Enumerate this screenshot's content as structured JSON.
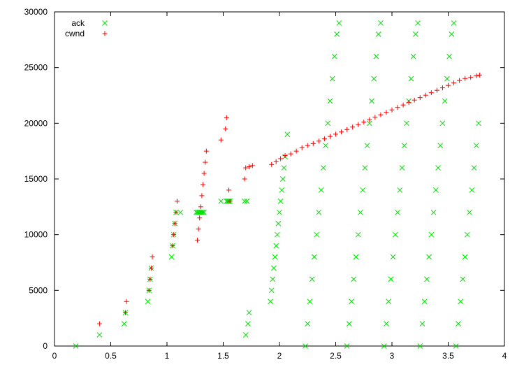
{
  "chart_data": {
    "type": "scatter",
    "title": "",
    "xlabel": "",
    "ylabel": "",
    "xlim": [
      0,
      4
    ],
    "ylim": [
      0,
      30000
    ],
    "x_ticks": [
      "0",
      "0.5",
      "1",
      "1.5",
      "2",
      "2.5",
      "3",
      "3.5",
      "4"
    ],
    "y_ticks": [
      "0",
      "5000",
      "10000",
      "15000",
      "20000",
      "25000",
      "30000"
    ],
    "legend_position": "top-left",
    "grid": false,
    "series": [
      {
        "name": "ack",
        "color": "#00e000",
        "marker": "x",
        "points": [
          [
            0.19,
            0
          ],
          [
            0.4,
            1000
          ],
          [
            0.62,
            2000
          ],
          [
            0.63,
            3000
          ],
          [
            0.83,
            4000
          ],
          [
            0.84,
            5000
          ],
          [
            0.85,
            6000
          ],
          [
            0.86,
            7000
          ],
          [
            1.04,
            8000
          ],
          [
            1.05,
            9000
          ],
          [
            1.06,
            10000
          ],
          [
            1.07,
            11000
          ],
          [
            1.08,
            12000
          ],
          [
            1.12,
            12000
          ],
          [
            1.26,
            12000
          ],
          [
            1.27,
            12000
          ],
          [
            1.28,
            12000
          ],
          [
            1.29,
            12000
          ],
          [
            1.3,
            12000
          ],
          [
            1.31,
            12000
          ],
          [
            1.32,
            12000
          ],
          [
            1.33,
            12000
          ],
          [
            1.48,
            13000
          ],
          [
            1.53,
            13000
          ],
          [
            1.54,
            13000
          ],
          [
            1.55,
            13000
          ],
          [
            1.56,
            13000
          ],
          [
            1.69,
            13000
          ],
          [
            1.71,
            13000
          ],
          [
            1.7,
            1000
          ],
          [
            1.72,
            2000
          ],
          [
            1.73,
            3000
          ],
          [
            1.92,
            4000
          ],
          [
            1.93,
            5000
          ],
          [
            1.94,
            6000
          ],
          [
            1.95,
            7000
          ],
          [
            1.96,
            8000
          ],
          [
            1.97,
            9000
          ],
          [
            1.98,
            10000
          ],
          [
            1.99,
            11000
          ],
          [
            2.0,
            12000
          ],
          [
            2.01,
            13000
          ],
          [
            2.02,
            14000
          ],
          [
            2.03,
            15000
          ],
          [
            2.04,
            16000
          ],
          [
            2.05,
            17000
          ],
          [
            2.07,
            19000
          ],
          [
            2.23,
            0
          ],
          [
            2.25,
            2000
          ],
          [
            2.27,
            4000
          ],
          [
            2.29,
            6000
          ],
          [
            2.31,
            8000
          ],
          [
            2.33,
            10000
          ],
          [
            2.35,
            12000
          ],
          [
            2.37,
            14000
          ],
          [
            2.39,
            16000
          ],
          [
            2.41,
            18000
          ],
          [
            2.43,
            20000
          ],
          [
            2.45,
            22000
          ],
          [
            2.47,
            24000
          ],
          [
            2.49,
            26000
          ],
          [
            2.51,
            28000
          ],
          [
            2.53,
            29000
          ],
          [
            2.6,
            0
          ],
          [
            2.62,
            2000
          ],
          [
            2.64,
            4000
          ],
          [
            2.66,
            6000
          ],
          [
            2.68,
            8000
          ],
          [
            2.7,
            10000
          ],
          [
            2.72,
            12000
          ],
          [
            2.74,
            14000
          ],
          [
            2.76,
            16000
          ],
          [
            2.78,
            18000
          ],
          [
            2.8,
            20000
          ],
          [
            2.82,
            22000
          ],
          [
            2.84,
            24000
          ],
          [
            2.86,
            26000
          ],
          [
            2.88,
            28000
          ],
          [
            2.9,
            29000
          ],
          [
            2.93,
            0
          ],
          [
            2.95,
            2000
          ],
          [
            2.97,
            4000
          ],
          [
            2.99,
            6000
          ],
          [
            3.01,
            8000
          ],
          [
            3.03,
            10000
          ],
          [
            3.05,
            12000
          ],
          [
            3.07,
            14000
          ],
          [
            3.09,
            16000
          ],
          [
            3.11,
            18000
          ],
          [
            3.13,
            20000
          ],
          [
            3.15,
            22000
          ],
          [
            3.17,
            24000
          ],
          [
            3.19,
            26000
          ],
          [
            3.21,
            28000
          ],
          [
            3.23,
            29000
          ],
          [
            3.25,
            0
          ],
          [
            3.27,
            2000
          ],
          [
            3.29,
            4000
          ],
          [
            3.31,
            6000
          ],
          [
            3.33,
            8000
          ],
          [
            3.35,
            10000
          ],
          [
            3.37,
            12000
          ],
          [
            3.39,
            14000
          ],
          [
            3.41,
            16000
          ],
          [
            3.43,
            18000
          ],
          [
            3.45,
            20000
          ],
          [
            3.47,
            22000
          ],
          [
            3.49,
            24000
          ],
          [
            3.51,
            26000
          ],
          [
            3.53,
            28000
          ],
          [
            3.55,
            29000
          ],
          [
            3.57,
            0
          ],
          [
            3.59,
            2000
          ],
          [
            3.61,
            4000
          ],
          [
            3.63,
            6000
          ],
          [
            3.65,
            8000
          ],
          [
            3.67,
            10000
          ],
          [
            3.69,
            12000
          ],
          [
            3.71,
            14000
          ],
          [
            3.73,
            16000
          ],
          [
            3.75,
            18000
          ],
          [
            3.77,
            20000
          ]
        ]
      },
      {
        "name": "cwnd",
        "color": "#ff0000",
        "marker": "+",
        "points": [
          [
            0.4,
            2000
          ],
          [
            0.63,
            3000
          ],
          [
            0.64,
            4000
          ],
          [
            0.84,
            5000
          ],
          [
            0.85,
            6000
          ],
          [
            0.86,
            7000
          ],
          [
            0.87,
            8000
          ],
          [
            1.05,
            9000
          ],
          [
            1.06,
            10000
          ],
          [
            1.07,
            11000
          ],
          [
            1.08,
            12000
          ],
          [
            1.09,
            13000
          ],
          [
            1.27,
            9500
          ],
          [
            1.28,
            10500
          ],
          [
            1.29,
            11500
          ],
          [
            1.3,
            12500
          ],
          [
            1.31,
            13500
          ],
          [
            1.32,
            14500
          ],
          [
            1.33,
            15500
          ],
          [
            1.34,
            16500
          ],
          [
            1.35,
            17500
          ],
          [
            1.48,
            18500
          ],
          [
            1.52,
            19500
          ],
          [
            1.53,
            20500
          ],
          [
            1.55,
            14000
          ],
          [
            1.56,
            13000
          ],
          [
            1.69,
            15000
          ],
          [
            1.7,
            16000
          ],
          [
            1.73,
            16100
          ],
          [
            1.76,
            16200
          ],
          [
            1.93,
            16300
          ],
          [
            1.97,
            16550
          ],
          [
            2.01,
            16820
          ],
          [
            2.05,
            17100
          ],
          [
            2.1,
            17250
          ],
          [
            2.15,
            17500
          ],
          [
            2.2,
            17800
          ],
          [
            2.25,
            18000
          ],
          [
            2.3,
            18180
          ],
          [
            2.35,
            18400
          ],
          [
            2.4,
            18600
          ],
          [
            2.45,
            18820
          ],
          [
            2.5,
            19020
          ],
          [
            2.55,
            19220
          ],
          [
            2.6,
            19440
          ],
          [
            2.65,
            19660
          ],
          [
            2.7,
            19880
          ],
          [
            2.75,
            20100
          ],
          [
            2.8,
            20320
          ],
          [
            2.85,
            20540
          ],
          [
            2.9,
            20760
          ],
          [
            2.95,
            20980
          ],
          [
            3.0,
            21200
          ],
          [
            3.05,
            21420
          ],
          [
            3.1,
            21640
          ],
          [
            3.15,
            21860
          ],
          [
            3.2,
            22080
          ],
          [
            3.25,
            22300
          ],
          [
            3.3,
            22520
          ],
          [
            3.35,
            22740
          ],
          [
            3.4,
            22960
          ],
          [
            3.45,
            23180
          ],
          [
            3.5,
            23400
          ],
          [
            3.55,
            23620
          ],
          [
            3.6,
            23840
          ],
          [
            3.65,
            24020
          ],
          [
            3.7,
            24120
          ],
          [
            3.75,
            24260
          ],
          [
            3.78,
            24330
          ]
        ]
      }
    ]
  }
}
